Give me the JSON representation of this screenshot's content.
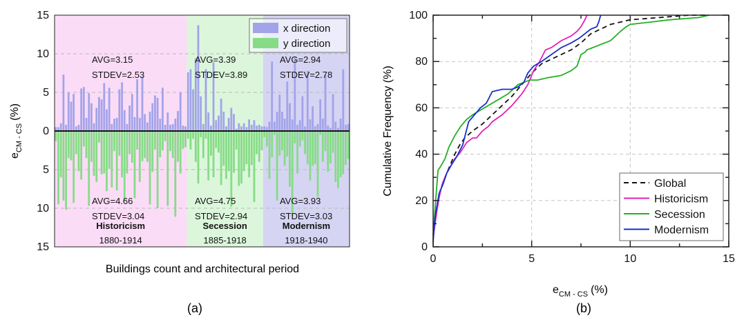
{
  "chart_data": [
    {
      "id": "a",
      "type": "bar",
      "panel_label": "(a)",
      "xlabel": "Buildings count and architectural period",
      "ylabel_main": "e",
      "ylabel_sub": "CM - CS",
      "ylabel_unit": "(%)",
      "ylim": [
        -15,
        15
      ],
      "yticks": [
        15,
        10,
        5,
        0,
        5,
        10,
        15
      ],
      "grid": "dashed-horizontal",
      "legend_position": "top-right",
      "series": [
        {
          "name": "x direction",
          "color": "#a3a3ea"
        },
        {
          "name": "y direction",
          "color": "#86dc86"
        }
      ],
      "periods": [
        {
          "name": "Historicism",
          "years": "1880-1914",
          "bg": "#fbdcf7",
          "x_avg": "AVG=3.15",
          "x_stdev": "STDEV=2.53",
          "y_avg": "AVG=4.66",
          "y_stdev": "STDEV=3.04",
          "x_values": [
            0.5,
            0.5,
            1.0,
            7.3,
            0.8,
            5.0,
            3.8,
            4.8,
            0.6,
            0.8,
            5.5,
            5.7,
            1.7,
            4.9,
            3.6,
            1.0,
            3.0,
            4.4,
            4.1,
            6.2,
            2.8,
            5.6,
            0.9,
            1.6,
            1.7,
            5.4,
            6.3,
            2.7,
            0.9,
            3.3,
            4.8,
            1.8,
            6.7,
            1.7,
            7.0,
            2.2,
            1.1,
            2.5,
            3.6,
            4.6,
            4.3,
            1.6,
            5.6,
            0.8,
            2.4,
            0.8,
            0.9,
            1.6,
            2.6,
            5.0,
            0.7,
            0.6
          ],
          "y_values": [
            1.3,
            9.5,
            6.0,
            9.0,
            10.2,
            3.5,
            3.8,
            9.3,
            3.0,
            5.2,
            6.3,
            2.0,
            3.5,
            9.7,
            4.0,
            5.8,
            6.6,
            1.5,
            5.6,
            5.5,
            7.8,
            4.9,
            7.3,
            2.6,
            7.7,
            3.2,
            6.0,
            9.1,
            5.5,
            3.0,
            4.1,
            8.7,
            2.4,
            6.6,
            3.9,
            3.5,
            4.0,
            9.5,
            5.3,
            2.4,
            10.0,
            3.4,
            2.5,
            1.3,
            9.7,
            2.6,
            3.5,
            11.1,
            4.0,
            5.5,
            2.3,
            2.1
          ]
        },
        {
          "name": "Secession",
          "years": "1885-1918",
          "bg": "#dcf6dc",
          "x_avg": "AVG=3.39",
          "x_stdev": "STDEV=3.89",
          "y_avg": "AVG=4.75",
          "y_stdev": "STDEV=2.94",
          "x_values": [
            7.6,
            8.0,
            5.4,
            9.4,
            13.7,
            4.5,
            0.9,
            8.0,
            2.4,
            0.7,
            8.9,
            1.4,
            2.0,
            4.2,
            2.5,
            0.6,
            1.7,
            3.0,
            2.2,
            0.3,
            1.0,
            0.6,
            1.0,
            0.5,
            1.5,
            0.8,
            1.4,
            0.7,
            0.8,
            0.6
          ],
          "y_values": [
            1.0,
            2.4,
            1.0,
            4.0,
            6.8,
            0.8,
            3.5,
            1.0,
            6.4,
            3.2,
            6.0,
            2.2,
            2.8,
            7.0,
            4.5,
            6.2,
            5.2,
            9.8,
            5.4,
            2.4,
            7.1,
            6.8,
            5.2,
            4.3,
            6.0,
            4.4,
            9.2,
            3.0,
            4.0,
            2.5
          ]
        },
        {
          "name": "Modernism",
          "years": "1918-1940",
          "bg": "#d6d4f3",
          "x_avg": "AVG=2.94",
          "x_stdev": "STDEV=2.78",
          "y_avg": "AVG=3.93",
          "y_stdev": "STDEV=3.03",
          "x_values": [
            0.6,
            0.5,
            1.2,
            9.0,
            1.2,
            2.5,
            4.7,
            2.5,
            1.6,
            6.4,
            3.6,
            1.5,
            9.5,
            0.8,
            1.4,
            4.5,
            0.6,
            7.8,
            1.5,
            3.2,
            0.6,
            0.9,
            4.1,
            1.6,
            7.3,
            0.7,
            0.4,
            4.8,
            1.2,
            0.4,
            1.6,
            8.0,
            0.8,
            0.9
          ],
          "y_values": [
            0.8,
            2.0,
            6.2,
            3.4,
            0.5,
            9.0,
            3.2,
            2.5,
            4.5,
            3.3,
            7.2,
            11.0,
            1.6,
            5.5,
            2.0,
            1.2,
            3.0,
            4.3,
            6.4,
            4.5,
            4.3,
            8.5,
            0.5,
            4.0,
            2.6,
            5.3,
            4.2,
            2.8,
            6.6,
            7.4,
            6.0,
            5.6,
            4.4,
            3.6
          ]
        }
      ]
    },
    {
      "id": "b",
      "type": "line",
      "panel_label": "(b)",
      "xlabel_main": "e",
      "xlabel_sub": "CM - CS",
      "xlabel_unit": "(%)",
      "ylabel": "Cumulative Frequency (%)",
      "xlim": [
        0,
        15
      ],
      "ylim": [
        0,
        100
      ],
      "xticks": [
        0,
        5,
        10,
        15
      ],
      "yticks": [
        0,
        20,
        40,
        60,
        80,
        100
      ],
      "grid": "dashed",
      "legend_position": "bottom-right",
      "series": [
        {
          "name": "Global",
          "color": "#111111",
          "dash": "7,5",
          "x": [
            0,
            0.1,
            0.2,
            0.35,
            0.5,
            0.7,
            0.9,
            1.1,
            1.35,
            1.6,
            2.0,
            2.5,
            3.0,
            3.5,
            4.0,
            4.5,
            5.0,
            5.5,
            6.0,
            6.5,
            7.0,
            7.5,
            8.0,
            9.0,
            10.0,
            11.5,
            13.0,
            13.9
          ],
          "y": [
            5,
            12,
            18,
            24,
            28,
            32,
            36,
            40,
            44,
            47,
            50,
            53,
            57,
            61,
            65,
            70,
            75,
            79,
            81,
            83,
            85,
            88,
            92,
            96,
            98,
            99,
            100,
            100
          ]
        },
        {
          "name": "Historicism",
          "color": "#e020b8",
          "dash": "",
          "x": [
            0,
            0.1,
            0.2,
            0.3,
            0.4,
            0.5,
            0.7,
            0.9,
            1.1,
            1.4,
            1.7,
            2.0,
            2.2,
            2.5,
            2.8,
            3.0,
            3.5,
            4.0,
            4.5,
            4.8,
            5.1,
            5.4,
            5.7,
            6.0,
            6.5,
            7.0,
            7.3,
            7.5,
            7.7,
            7.8
          ],
          "y": [
            4,
            10,
            16,
            21,
            25,
            28,
            32,
            35,
            38,
            41,
            45,
            47,
            47,
            50,
            52,
            54,
            57,
            61,
            66,
            70,
            76,
            80,
            85,
            86,
            89,
            91,
            93,
            95,
            98,
            100
          ]
        },
        {
          "name": "Secession",
          "color": "#22b022",
          "dash": "",
          "x": [
            0,
            0.05,
            0.1,
            0.25,
            0.4,
            0.6,
            0.8,
            1.1,
            1.4,
            1.7,
            2.0,
            2.6,
            3.2,
            3.8,
            4.3,
            4.6,
            4.9,
            5.3,
            5.8,
            6.5,
            7.0,
            7.3,
            7.5,
            7.7,
            7.8,
            9.0,
            9.5,
            9.8,
            10.0,
            11.0,
            12.0,
            13.5,
            14.0
          ],
          "y": [
            3,
            10,
            17,
            33,
            35,
            38,
            43,
            48,
            52,
            55,
            57,
            60,
            63,
            66,
            70,
            71,
            72,
            72,
            73,
            74,
            76,
            78,
            83,
            84,
            85,
            89,
            93,
            95,
            96,
            97,
            98,
            99,
            100
          ]
        },
        {
          "name": "Modernism",
          "color": "#1a2dc8",
          "dash": "",
          "x": [
            0,
            0.05,
            0.1,
            0.2,
            0.3,
            0.5,
            0.7,
            0.9,
            1.2,
            1.5,
            1.8,
            2.1,
            2.4,
            2.7,
            3.0,
            3.5,
            4.0,
            4.3,
            4.6,
            4.8,
            5.1,
            5.5,
            6.0,
            6.5,
            7.0,
            7.4,
            7.7,
            8.0,
            8.3,
            8.4,
            8.5
          ],
          "y": [
            2,
            8,
            13,
            18,
            23,
            27,
            32,
            35,
            39,
            44,
            54,
            57,
            60,
            62,
            67,
            68,
            68,
            69,
            71,
            75,
            78,
            80,
            83,
            86,
            88,
            90,
            92,
            94,
            95,
            97,
            100
          ]
        }
      ]
    }
  ]
}
